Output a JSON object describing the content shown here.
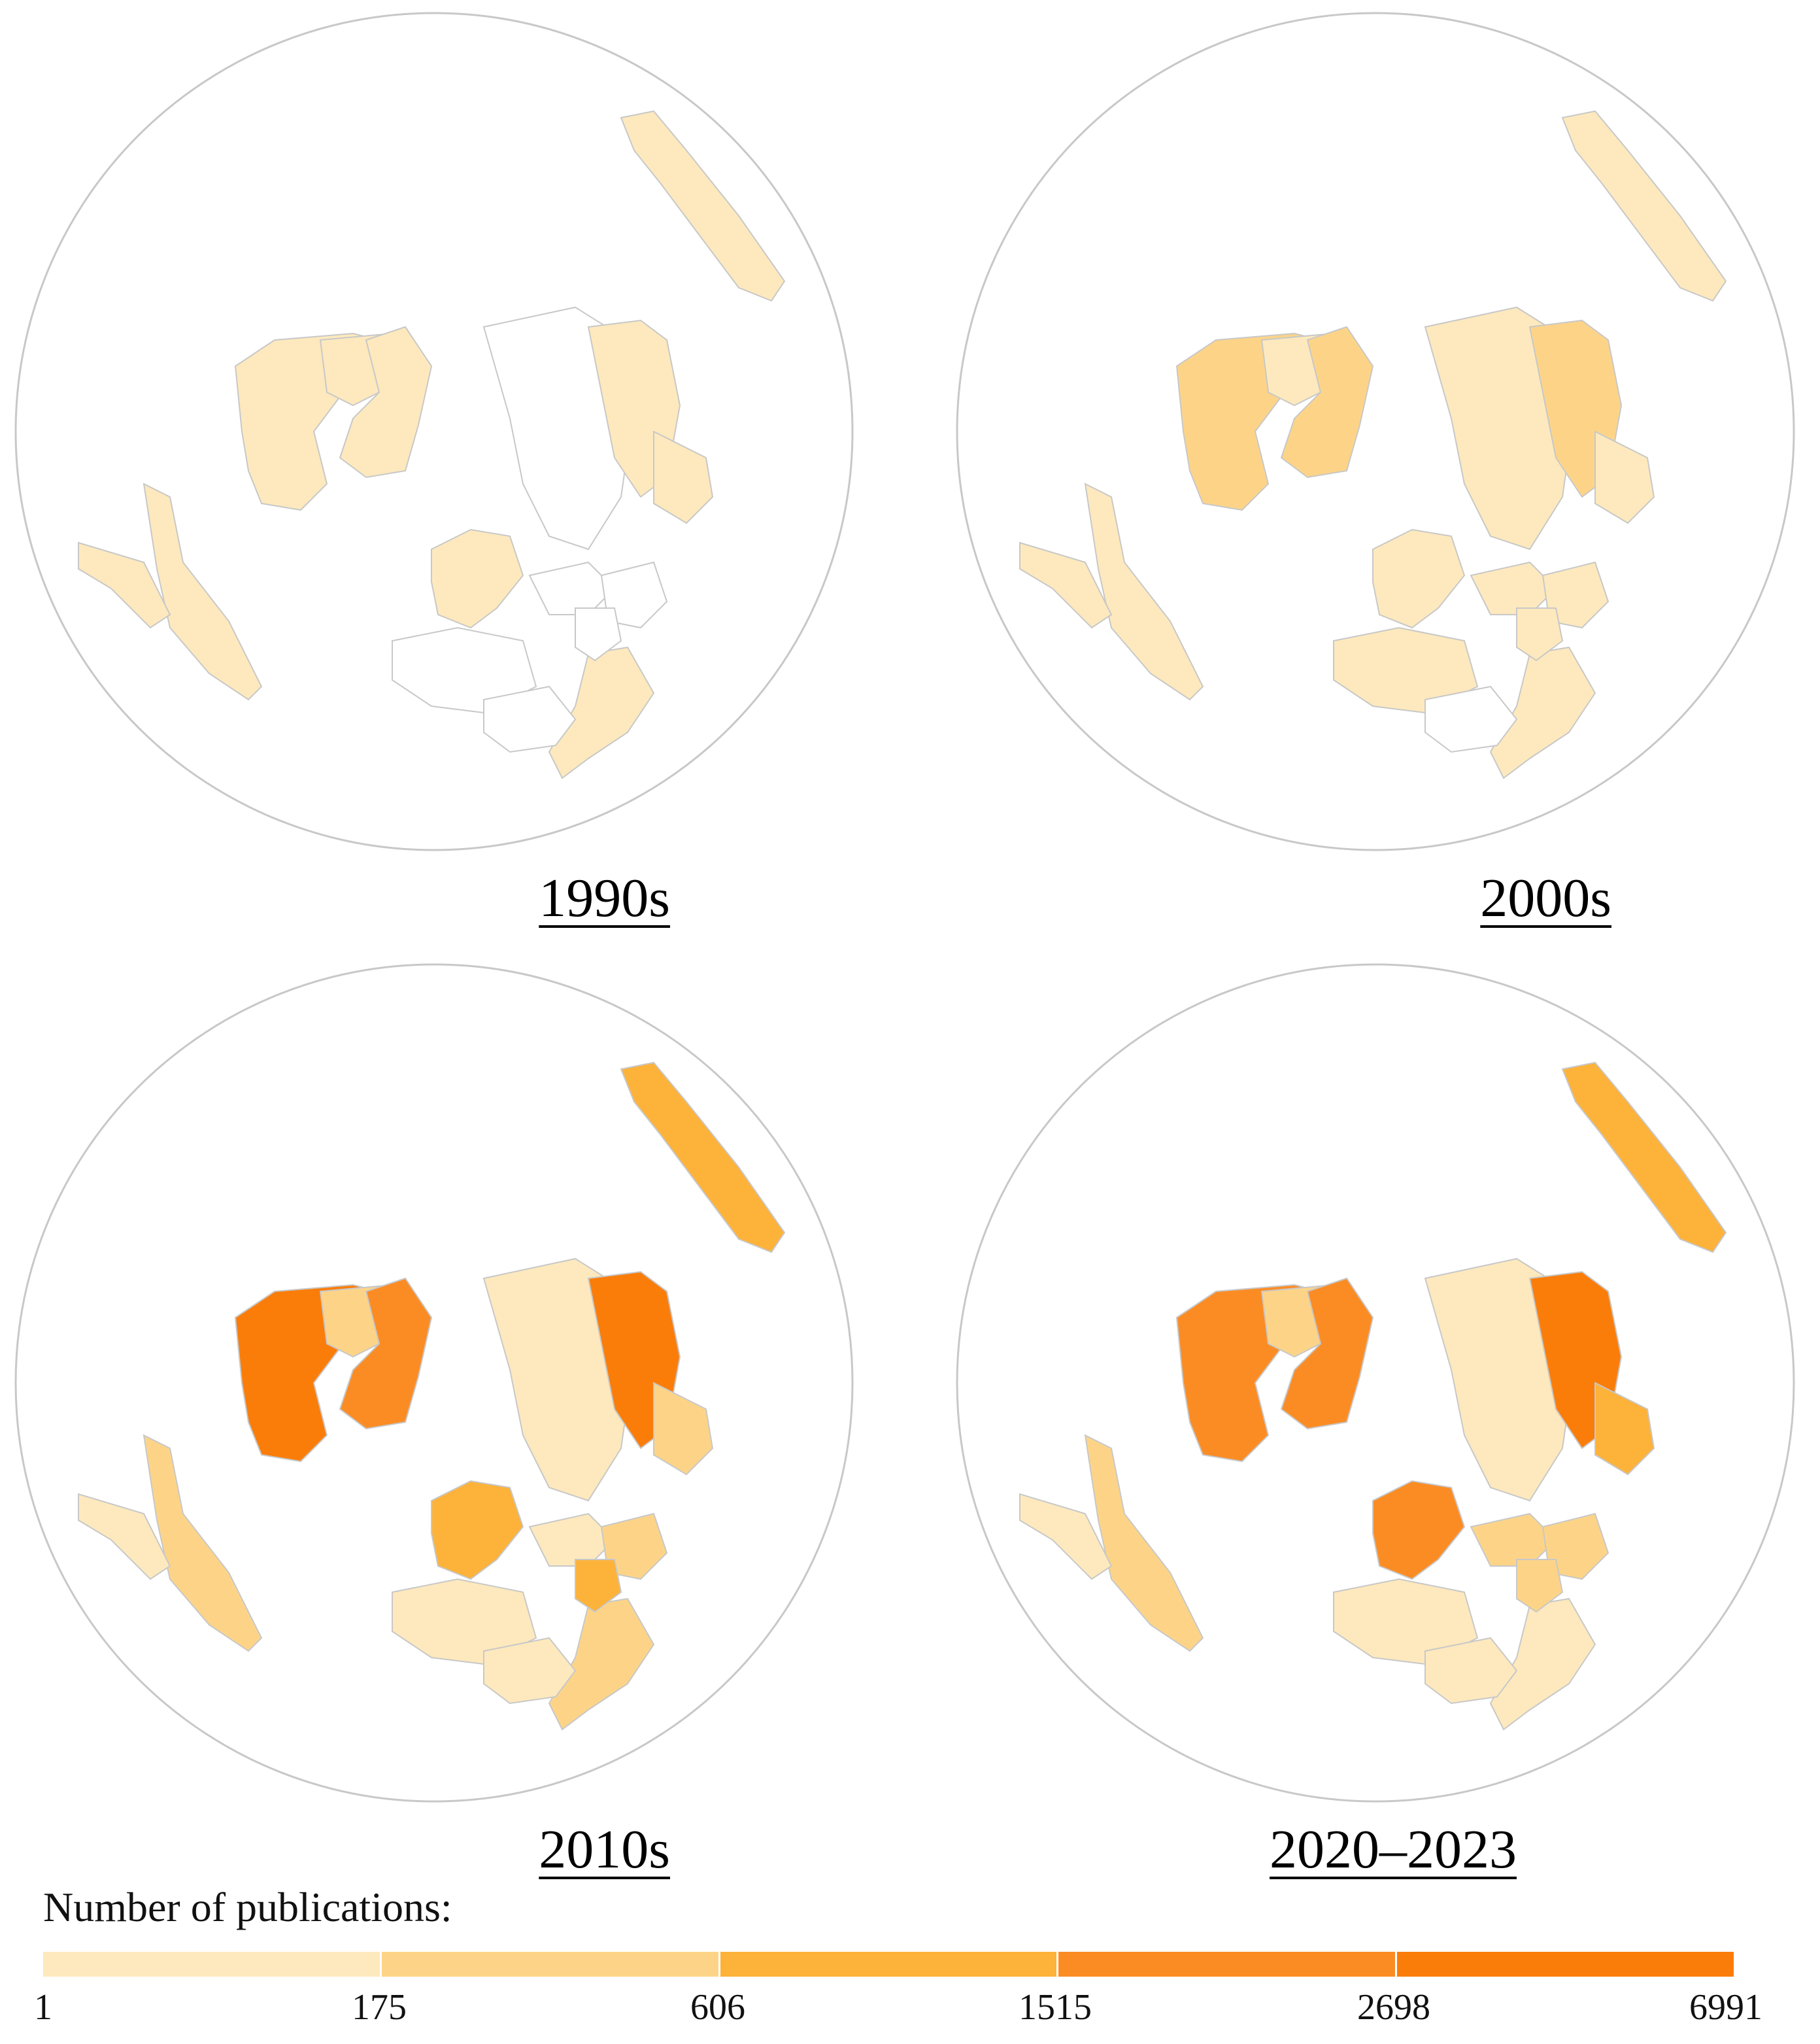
{
  "periods": [
    {
      "label": "1990s",
      "levels": {
        "northAmerica": 1,
        "canadaWest": 1,
        "canadaEast": 1,
        "southAmerica": 1,
        "southAmericaWest": 1,
        "russia": 0,
        "chinaLarge": 1,
        "chinaEast": 1,
        "australia": 1,
        "europe": 1,
        "africaSouth": 1,
        "africaNorth": 0,
        "africaCentral": 0,
        "middleEast": 0,
        "indonesia": 0,
        "india": 0
      }
    },
    {
      "label": "2000s",
      "levels": {
        "northAmerica": 2,
        "canadaWest": 1,
        "canadaEast": 2,
        "southAmerica": 1,
        "southAmericaWest": 1,
        "russia": 1,
        "chinaLarge": 2,
        "chinaEast": 1,
        "australia": 1,
        "europe": 1,
        "africaSouth": 1,
        "africaNorth": 1,
        "africaCentral": 0,
        "middleEast": 1,
        "indonesia": 1,
        "india": 1
      }
    },
    {
      "label": "2010s",
      "levels": {
        "northAmerica": 5,
        "canadaWest": 2,
        "canadaEast": 4,
        "southAmerica": 2,
        "southAmericaWest": 1,
        "russia": 1,
        "chinaLarge": 5,
        "chinaEast": 2,
        "australia": 3,
        "europe": 3,
        "africaSouth": 2,
        "africaNorth": 1,
        "africaCentral": 1,
        "middleEast": 1,
        "indonesia": 2,
        "india": 3
      }
    },
    {
      "label": "2020–2023",
      "levels": {
        "northAmerica": 4,
        "canadaWest": 2,
        "canadaEast": 4,
        "southAmerica": 2,
        "southAmericaWest": 1,
        "russia": 1,
        "chinaLarge": 5,
        "chinaEast": 3,
        "australia": 3,
        "europe": 4,
        "africaSouth": 1,
        "africaNorth": 1,
        "africaCentral": 1,
        "middleEast": 2,
        "indonesia": 2,
        "india": 2
      }
    }
  ],
  "legend": {
    "title": "Number of publications:",
    "ticks": [
      "1",
      "175",
      "606",
      "1515",
      "2698",
      "6991"
    ],
    "colors": [
      "#ffffff",
      "#fde9bd",
      "#fdd487",
      "#fdb23a",
      "#fb8c24",
      "#fa7d0a"
    ]
  },
  "outlineColor": "#c8c8c8"
}
